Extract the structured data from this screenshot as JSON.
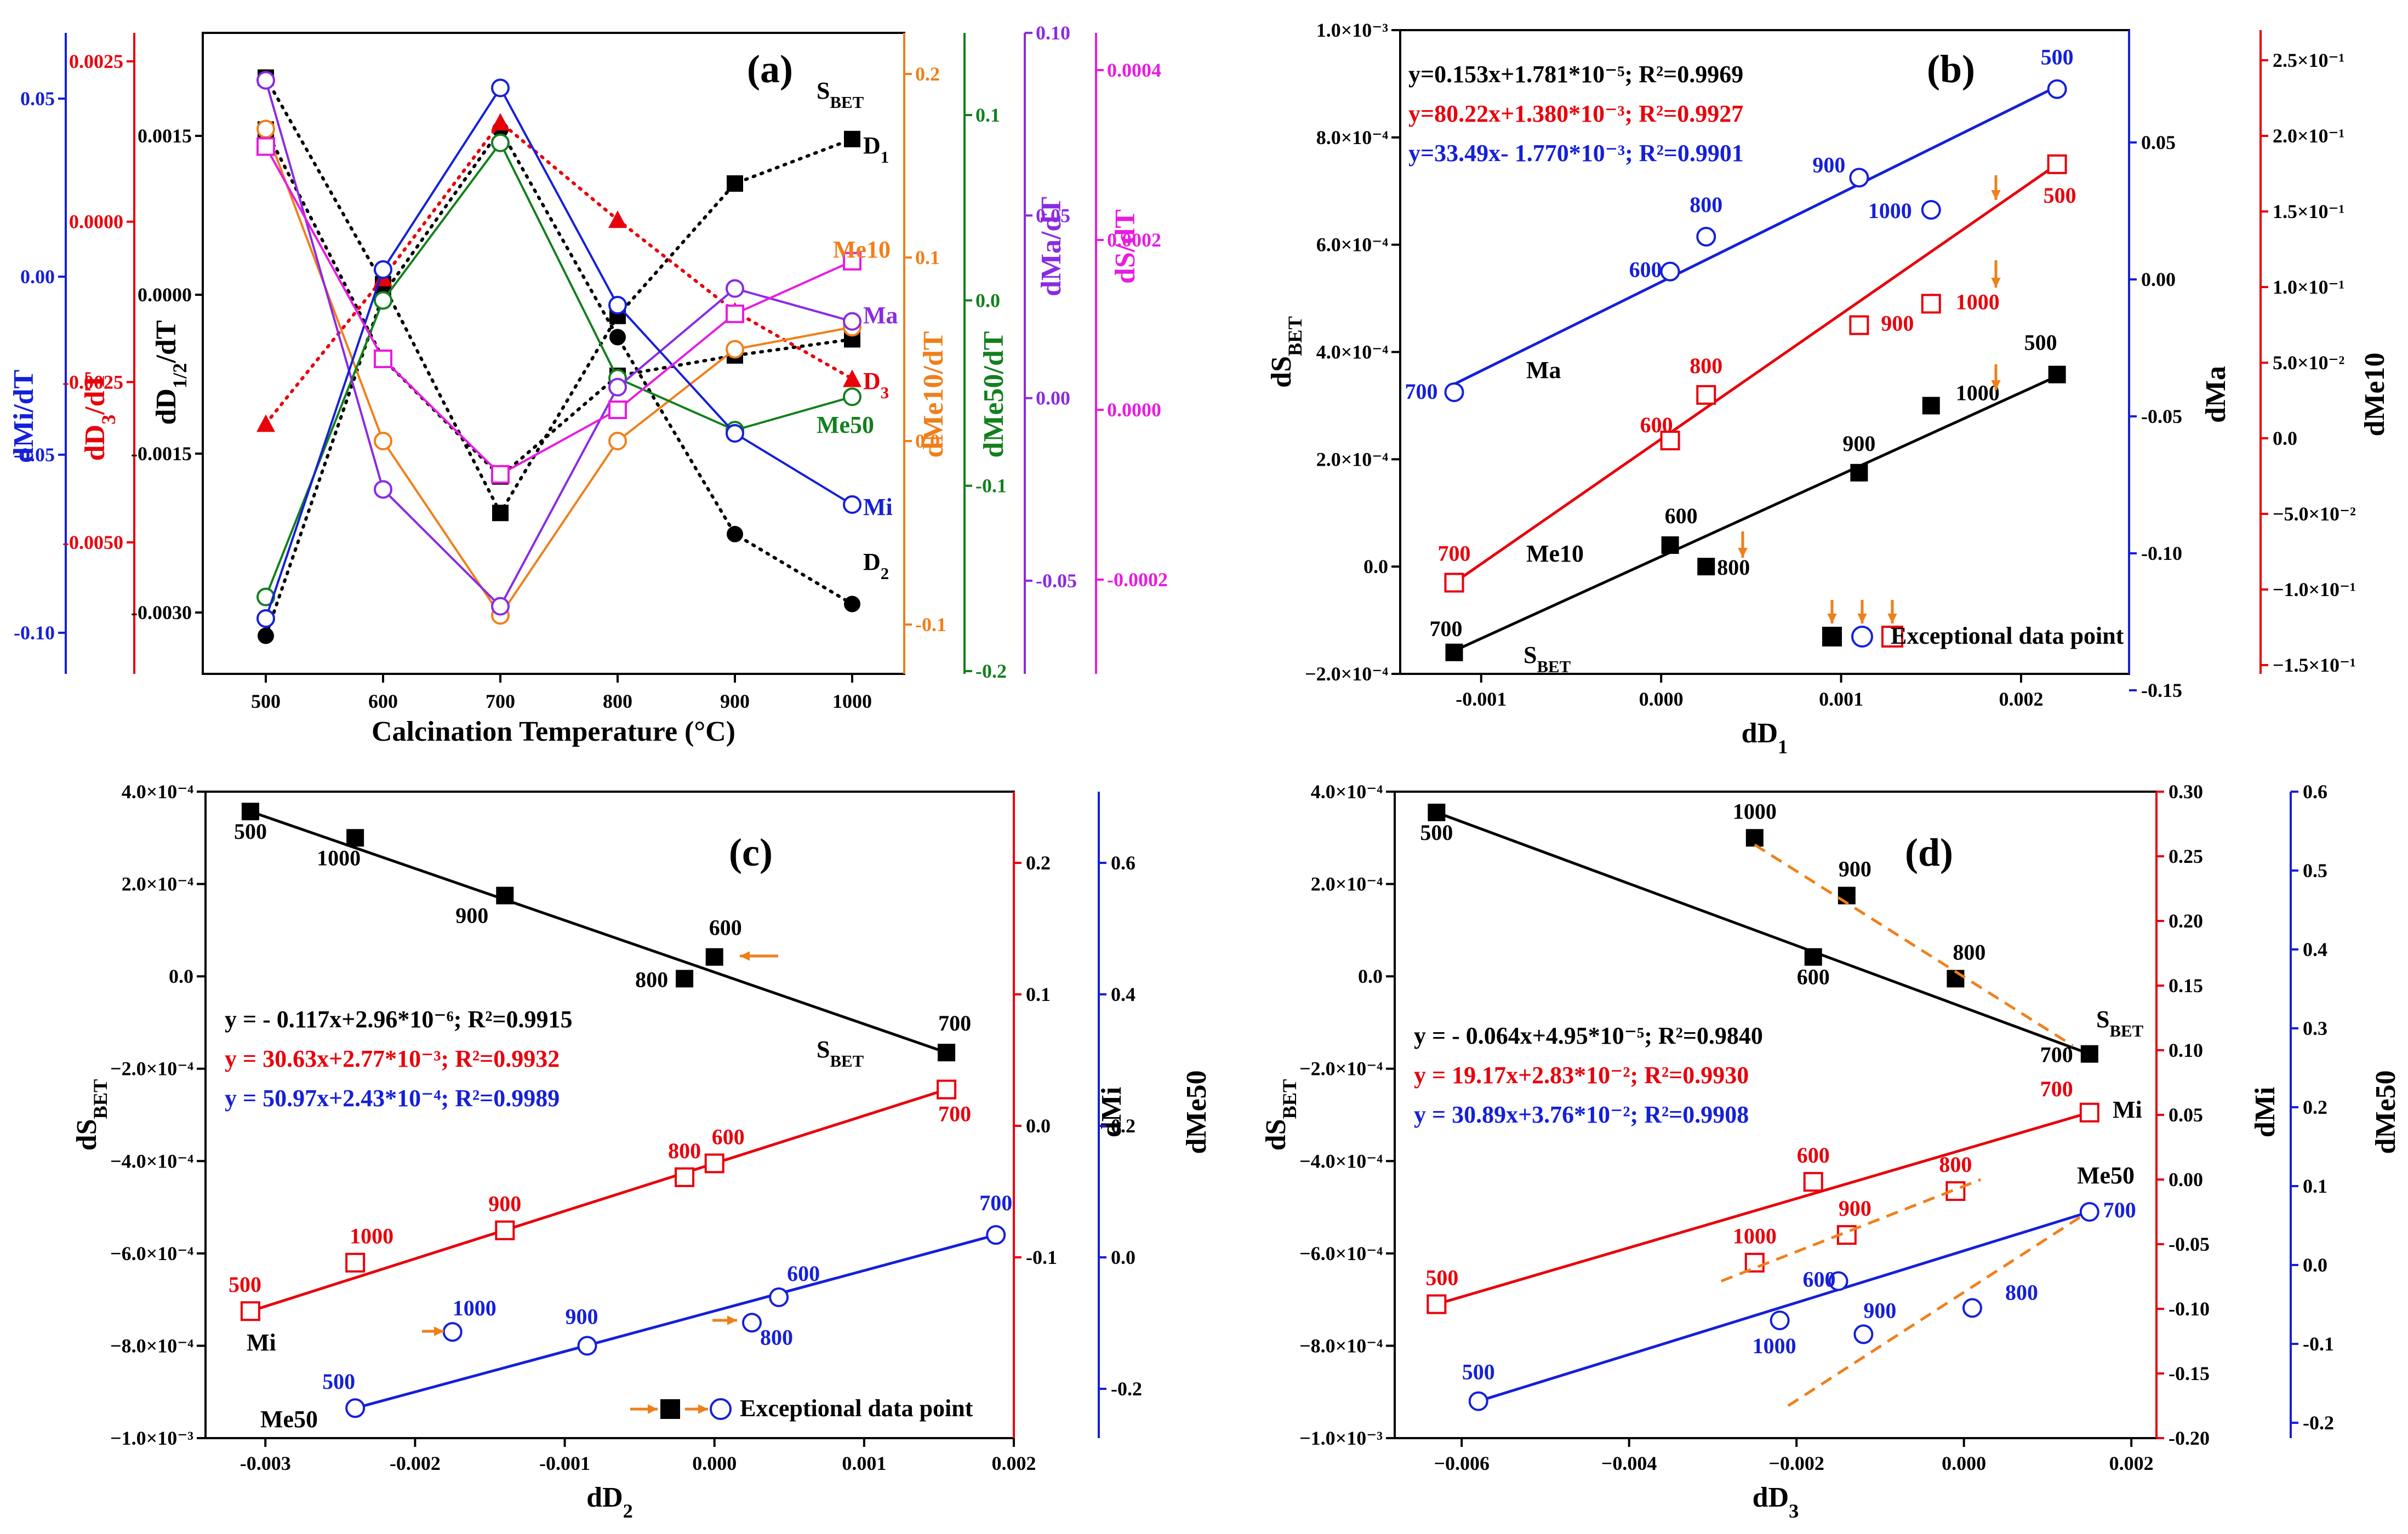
{
  "colors": {
    "black": "#000000",
    "red": "#e8000b",
    "blue": "#1520d8",
    "orange": "#f07f1a",
    "green": "#13801e",
    "purple": "#8a2be2",
    "magenta": "#e81ce0",
    "darkblue": "#1a2a8a"
  },
  "chart_data": [
    {
      "panel": "(a)",
      "type": "line",
      "xlabel": "Calcination Temperature (°C)",
      "categories": [
        500,
        600,
        700,
        800,
        900,
        1000
      ],
      "series": [
        {
          "name": "S_BET",
          "label": "S",
          "label_sub": "BET",
          "color": "black",
          "marker": "filled-square",
          "axis": "dS/dT",
          "values": [
            0.00033,
            6e-05,
            -7.85e-05,
            4e-05,
            6.4e-05,
            8.3e-05
          ]
        },
        {
          "name": "D1",
          "label": "D",
          "label_sub": "1",
          "color": "black",
          "marker": "filled-square",
          "axis": "dD1/2/dT",
          "values": [
            0.00205,
            0.0001,
            -0.00206,
            -0.0002,
            0.00105,
            0.00147
          ]
        },
        {
          "name": "D2",
          "label": "D",
          "label_sub": "2",
          "color": "black",
          "marker": "filled-circle",
          "axis": "dD1/2/dT",
          "values": [
            -0.00322,
            0.0,
            0.00156,
            -0.0004,
            -0.00226,
            -0.00292
          ]
        },
        {
          "name": "D3",
          "label": "D",
          "label_sub": "3",
          "color": "red",
          "marker": "filled-triangle",
          "axis": "dD3/dT",
          "values": [
            -0.00315,
            -0.00088,
            0.00155,
            3e-05,
            -0.0014,
            -0.00245
          ]
        },
        {
          "name": "Me10",
          "label": "Me10",
          "color": "orange",
          "marker": "open-circle",
          "axis": "dMe10/dT",
          "values": [
            0.17,
            -0.0,
            -0.095,
            0.0,
            0.05,
            0.062
          ]
        },
        {
          "name": "Me50",
          "label": "Me50",
          "color": "green",
          "marker": "open-circle",
          "axis": "dMe50/dT",
          "values": [
            -0.16,
            -0.0,
            0.085,
            -0.042,
            -0.07,
            -0.052
          ]
        },
        {
          "name": "Ma",
          "label": "Ma",
          "color": "purple",
          "marker": "open-circle",
          "axis": "dMa/dT",
          "values": [
            0.087,
            -0.025,
            -0.057,
            0.003,
            0.03,
            0.021
          ]
        },
        {
          "name": "Mi",
          "label": "Mi",
          "color": "blue",
          "marker": "open-circle",
          "axis": "dMi/dT",
          "values": [
            -0.096,
            0.002,
            0.053,
            -0.008,
            -0.044,
            -0.064
          ]
        },
        {
          "name": "dS",
          "color": "magenta",
          "marker": "open-square",
          "axis": "dS/dT",
          "values": [
            0.00031,
            6e-05,
            -7.6e-05,
            0.0,
            0.000113,
            0.000175
          ]
        }
      ],
      "axes": [
        {
          "label": "dMi/dT",
          "color": "blue",
          "ticks": [
            "0.05",
            "0.00",
            "-0.05",
            "-0.10"
          ]
        },
        {
          "label": "dD3/dT",
          "label_base": "dD",
          "label_sub": "3",
          "label_tail": "/dT",
          "color": "red",
          "ticks": [
            "0.0025",
            "0.0000",
            "-0.0025",
            "-0.0050"
          ]
        },
        {
          "label": "dD1/2/dT",
          "label_base": "dD",
          "label_sub": "1/2",
          "label_tail": "/dT",
          "color": "black",
          "ticks": [
            "0.0015",
            "0.0000",
            "-0.0015",
            "-0.0030"
          ]
        },
        {
          "label": "dMe10/dT",
          "color": "orange",
          "ticks": [
            "0.2",
            "0.1",
            "0.0",
            "-0.1"
          ]
        },
        {
          "label": "dMe50/dT",
          "color": "green",
          "ticks": [
            "0.1",
            "0.0",
            "-0.1",
            "-0.2"
          ]
        },
        {
          "label": "dMa/dT",
          "color": "purple",
          "ticks": [
            "0.10",
            "0.05",
            "0.00",
            "-0.05"
          ]
        },
        {
          "label": "dS/dT",
          "color": "magenta",
          "ticks": [
            "0.0004",
            "0.0002",
            "0.0000",
            "-0.0002"
          ]
        }
      ]
    },
    {
      "panel": "(b)",
      "type": "scatter",
      "xlabel": "dD",
      "xlabel_sub": "1",
      "ylabel": "dS",
      "ylabel_sub": "BET",
      "xlim": [
        -0.00145,
        0.0026
      ],
      "ylim": [
        -0.0002,
        0.001
      ],
      "x_ticks": [
        "-0.001",
        "0.000",
        "0.001",
        "0.002"
      ],
      "y_ticks": [
        "1.0×10⁻³",
        "8.0×10⁻⁴",
        "6.0×10⁻⁴",
        "4.0×10⁻⁴",
        "2.0×10⁻⁴",
        "0.0",
        "−2.0×10⁻⁴"
      ],
      "right_axes": [
        {
          "label": "dMa",
          "color": "blue",
          "ticks": [
            "0.05",
            "0.00",
            "-0.05",
            "-0.10",
            "-0.15"
          ]
        },
        {
          "label": "dMe10",
          "color": "red",
          "ticks": [
            "2.5×10⁻¹",
            "2.0×10⁻¹",
            "1.5×10⁻¹",
            "1.0×10⁻¹",
            "5.0×10⁻²",
            "0.0",
            "−5.0×10⁻²",
            "−1.0×10⁻¹",
            "−1.5×10⁻¹"
          ]
        }
      ],
      "series": [
        {
          "name": "S_BET",
          "color": "black",
          "marker": "filled-square",
          "points": [
            [
              -0.00115,
              -0.00016,
              "700"
            ],
            [
              5e-05,
              4e-05,
              "600"
            ],
            [
              0.00025,
              0.0,
              "800"
            ],
            [
              0.0011,
              0.000175,
              "900"
            ],
            [
              0.0015,
              0.0003,
              "1000"
            ],
            [
              0.0022,
              0.000358,
              "500"
            ]
          ]
        },
        {
          "name": "Me10",
          "color": "red",
          "marker": "open-square",
          "points": [
            [
              -0.00115,
              -3e-05,
              "700"
            ],
            [
              5e-05,
              0.000235,
              "600"
            ],
            [
              0.00025,
              0.00032,
              "800"
            ],
            [
              0.0011,
              0.00045,
              "900"
            ],
            [
              0.0015,
              0.00049,
              "1000"
            ],
            [
              0.0022,
              0.00075,
              "500"
            ]
          ]
        },
        {
          "name": "Ma",
          "color": "blue",
          "marker": "open-circle",
          "points": [
            [
              -0.00115,
              0.000325,
              "700"
            ],
            [
              5e-05,
              0.00055,
              "600"
            ],
            [
              0.00025,
              0.000615,
              "800"
            ],
            [
              0.0011,
              0.000725,
              "900"
            ],
            [
              0.0015,
              0.000665,
              "1000"
            ],
            [
              0.0022,
              0.00089,
              "500"
            ]
          ]
        }
      ],
      "equations": [
        {
          "color": "black",
          "text": "y=0.153x+1.781*10⁻⁵; R²=0.9969"
        },
        {
          "color": "red",
          "text": "y=80.22x+1.380*10⁻³; R²=0.9927"
        },
        {
          "color": "blue",
          "text": "y=33.49x- 1.770*10⁻³; R²=0.9901"
        }
      ],
      "series_labels": [
        "Ma",
        "Me10",
        "S"
      ],
      "legend": "Exceptional data point"
    },
    {
      "panel": "(c)",
      "type": "scatter",
      "xlabel": "dD",
      "xlabel_sub": "2",
      "ylabel": "dS",
      "ylabel_sub": "BET",
      "xlim": [
        -0.0034,
        0.002
      ],
      "ylim": [
        -0.001,
        0.0004
      ],
      "x_ticks": [
        "-0.003",
        "-0.002",
        "-0.001",
        "0.000",
        "0.001",
        "0.002"
      ],
      "y_ticks": [
        "4.0×10⁻⁴",
        "2.0×10⁻⁴",
        "0.0",
        "−2.0×10⁻⁴",
        "−4.0×10⁻⁴",
        "−6.0×10⁻⁴",
        "−8.0×10⁻⁴",
        "−1.0×10⁻³"
      ],
      "right_axes": [
        {
          "label": "dMi",
          "color": "red",
          "ticks": [
            "0.2",
            "0.1",
            "0.0",
            "-0.1"
          ]
        },
        {
          "label": "dMe50",
          "color": "blue",
          "ticks": [
            "0.6",
            "0.4",
            "0.2",
            "0.0",
            "-0.2"
          ]
        }
      ],
      "series": [
        {
          "name": "S_BET",
          "color": "black",
          "marker": "filled-square",
          "points": [
            [
              -0.0031,
              0.000357,
              "500"
            ],
            [
              -0.0024,
              0.0003,
              "1000"
            ],
            [
              -0.0014,
              0.000175,
              "900"
            ],
            [
              -0.0002,
              -5e-06,
              "800"
            ],
            [
              0.0,
              4.2e-05,
              "600"
            ],
            [
              0.00155,
              -0.000165,
              "700"
            ]
          ]
        },
        {
          "name": "Mi",
          "color": "red",
          "marker": "open-square",
          "points": [
            [
              -0.0031,
              -0.000725,
              "500"
            ],
            [
              -0.0024,
              -0.00062,
              "1000"
            ],
            [
              -0.0014,
              -0.00055,
              "900"
            ],
            [
              -0.0002,
              -0.000435,
              "800"
            ],
            [
              0.0,
              -0.000405,
              "600"
            ],
            [
              0.00155,
              -0.000245,
              "700"
            ]
          ]
        },
        {
          "name": "Me50",
          "color": "blue",
          "marker": "open-circle",
          "points": [
            [
              -0.0024,
              -0.000935,
              "500"
            ],
            [
              -0.00175,
              -0.00077,
              "1000"
            ],
            [
              -0.00085,
              -0.0008,
              "900"
            ],
            [
              0.00025,
              -0.00075,
              "800"
            ],
            [
              0.00043,
              -0.000695,
              "600"
            ],
            [
              0.00188,
              -0.00056,
              "700"
            ]
          ]
        }
      ],
      "equations": [
        {
          "color": "black",
          "text": "y = - 0.117x+2.96*10⁻⁶; R²=0.9915"
        },
        {
          "color": "red",
          "text": "y =   30.63x+2.77*10⁻³; R²=0.9932"
        },
        {
          "color": "blue",
          "text": "y =   50.97x+2.43*10⁻⁴; R²=0.9989"
        }
      ],
      "series_labels": [
        "S",
        "Mi",
        "Me50"
      ],
      "legend": "Exceptional data point"
    },
    {
      "panel": "(d)",
      "type": "scatter",
      "xlabel": "dD",
      "xlabel_sub": "3",
      "ylabel": "dS",
      "ylabel_sub": "BET",
      "xlim": [
        -0.0068,
        0.0023
      ],
      "ylim": [
        -0.001,
        0.0004
      ],
      "x_ticks": [
        "−0.006",
        "−0.004",
        "−0.002",
        "0.000",
        "0.002"
      ],
      "y_ticks": [
        "4.0×10⁻⁴",
        "2.0×10⁻⁴",
        "0.0",
        "−2.0×10⁻⁴",
        "−4.0×10⁻⁴",
        "−6.0×10⁻⁴",
        "−8.0×10⁻⁴",
        "−1.0×10⁻³"
      ],
      "right_axes": [
        {
          "label": "dMi",
          "color": "red",
          "ticks": [
            "0.30",
            "0.25",
            "0.20",
            "0.15",
            "0.10",
            "0.05",
            "0.00",
            "-0.05",
            "-0.10",
            "-0.15",
            "-0.20"
          ]
        },
        {
          "label": "dMe50",
          "color": "blue",
          "ticks": [
            "0.6",
            "0.5",
            "0.4",
            "0.3",
            "0.2",
            "0.1",
            "0.0",
            "-0.1",
            "-0.2"
          ]
        }
      ],
      "series": [
        {
          "name": "S_BET",
          "color": "black",
          "marker": "filled-square",
          "points": [
            [
              -0.0063,
              0.000355,
              "500"
            ],
            [
              -0.0025,
              0.0003,
              "1000"
            ],
            [
              -0.0014,
              0.000175,
              "900"
            ],
            [
              -0.0018,
              4.2e-05,
              "600"
            ],
            [
              -0.0001,
              -5e-06,
              "800"
            ],
            [
              0.0015,
              -0.000168,
              "700"
            ]
          ]
        },
        {
          "name": "Mi",
          "color": "red",
          "marker": "open-square",
          "points": [
            [
              -0.0063,
              -0.00071,
              "500"
            ],
            [
              -0.0025,
              -0.00062,
              "1000"
            ],
            [
              -0.0014,
              -0.00056,
              "900"
            ],
            [
              -0.0018,
              -0.000445,
              "600"
            ],
            [
              -0.0001,
              -0.000465,
              "800"
            ],
            [
              0.0015,
              -0.000295,
              "700"
            ]
          ]
        },
        {
          "name": "Me50",
          "color": "blue",
          "marker": "open-circle",
          "points": [
            [
              -0.0058,
              -0.00092,
              "500"
            ],
            [
              -0.0022,
              -0.000745,
              "1000"
            ],
            [
              -0.0012,
              -0.000775,
              "900"
            ],
            [
              -0.0015,
              -0.00066,
              "600"
            ],
            [
              0.0001,
              -0.000718,
              "800"
            ],
            [
              0.0015,
              -0.00051,
              "700"
            ]
          ]
        }
      ],
      "equations": [
        {
          "color": "black",
          "text": "y = -  0.064x+4.95*10⁻⁵; R²=0.9840"
        },
        {
          "color": "red",
          "text": "y =   19.17x+2.83*10⁻²; R²=0.9930"
        },
        {
          "color": "blue",
          "text": "y =   30.89x+3.76*10⁻²; R²=0.9908"
        }
      ],
      "series_labels": [
        "S",
        "Mi",
        "Me50"
      ]
    }
  ]
}
